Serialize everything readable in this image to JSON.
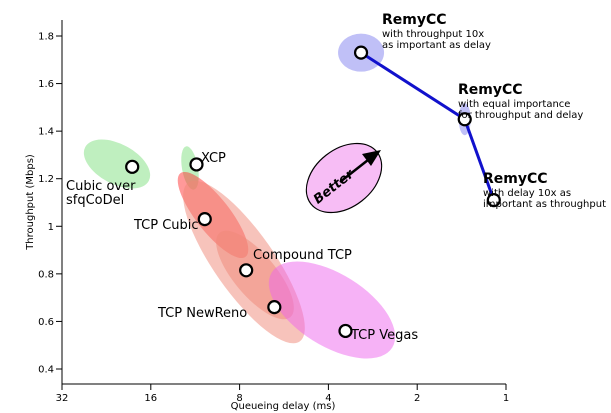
{
  "chart_data": {
    "type": "scatter",
    "xlabel": "Queueing delay (ms)",
    "ylabel": "Throughput (Mbps)",
    "x_scale": "log2",
    "x_reversed": true,
    "xlim": [
      32,
      1
    ],
    "ylim": [
      0.36,
      1.86
    ],
    "x_ticks": [
      32,
      16,
      8,
      4,
      2,
      1
    ],
    "x_tick_labels": [
      "32",
      "16",
      "8",
      "4",
      "2",
      "1"
    ],
    "y_ticks": [
      0.4,
      0.6,
      0.8,
      1.0,
      1.2,
      1.4,
      1.6,
      1.8
    ],
    "y_tick_labels": [
      "0.4",
      "0.6",
      "0.8",
      "1",
      "1.2",
      "1.4",
      "1.6",
      "1.8"
    ],
    "points": [
      {
        "name": "Cubic over sfqCoDel",
        "label_lines": [
          "Cubic over",
          "sfqCoDel"
        ],
        "x": 18.5,
        "y": 1.25,
        "color": "#7fe07f"
      },
      {
        "name": "XCP",
        "label_lines": [
          "XCP"
        ],
        "x": 11.2,
        "y": 1.26,
        "color": "#7fe07f"
      },
      {
        "name": "TCP Cubic",
        "label_lines": [
          "TCP Cubic"
        ],
        "x": 10.5,
        "y": 1.03,
        "color": "#ff3333"
      },
      {
        "name": "Compound TCP",
        "label_lines": [
          "Compound TCP"
        ],
        "x": 7.6,
        "y": 0.815,
        "color": "#f08878"
      },
      {
        "name": "TCP NewReno",
        "label_lines": [
          "TCP NewReno"
        ],
        "x": 6.1,
        "y": 0.66,
        "color": "#f08878"
      },
      {
        "name": "TCP Vegas",
        "label_lines": [
          "TCP Vegas"
        ],
        "x": 3.5,
        "y": 0.56,
        "color": "#ee66ee"
      }
    ],
    "remycc": {
      "name": "RemyCC",
      "line_color": "#1111cc",
      "points": [
        {
          "x": 3.1,
          "y": 1.73,
          "desc_lines": [
            "with throughput 10x",
            "as important as delay"
          ]
        },
        {
          "x": 1.38,
          "y": 1.45,
          "desc_lines": [
            "with equal importance",
            "for throughput and delay"
          ]
        },
        {
          "x": 1.1,
          "y": 1.11,
          "desc_lines": [
            "with delay 10x as",
            "important as throughput"
          ]
        }
      ]
    },
    "annotation": "Better"
  }
}
